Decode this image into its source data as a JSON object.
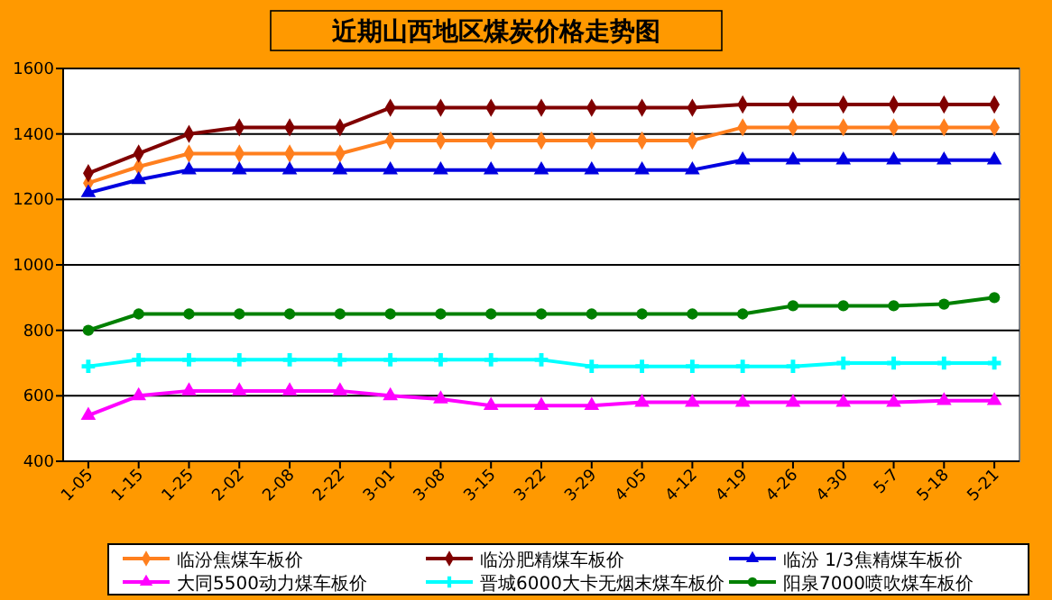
{
  "chart_data": {
    "type": "line",
    "title": "近期山西地区煤炭价格走势图",
    "categories": [
      "1-05",
      "1-15",
      "1-25",
      "2-02",
      "2-08",
      "2-22",
      "3-01",
      "3-08",
      "3-15",
      "3-22",
      "3-29",
      "4-05",
      "4-12",
      "4-19",
      "4-26",
      "4-30",
      "5-7",
      "5-18",
      "5-21"
    ],
    "series": [
      {
        "name": "临汾焦煤车板价",
        "color": "#ff7f1e",
        "marker": "diamond",
        "values": [
          1250,
          1300,
          1340,
          1340,
          1340,
          1340,
          1380,
          1380,
          1380,
          1380,
          1380,
          1380,
          1380,
          1420,
          1420,
          1420,
          1420,
          1420,
          1420
        ]
      },
      {
        "name": "临汾肥精煤车板价",
        "color": "#800000",
        "marker": "diamond",
        "values": [
          1280,
          1340,
          1400,
          1420,
          1420,
          1420,
          1480,
          1480,
          1480,
          1480,
          1480,
          1480,
          1480,
          1490,
          1490,
          1490,
          1490,
          1490,
          1490
        ]
      },
      {
        "name": "临汾 1/3焦精煤车板价",
        "color": "#0000e0",
        "marker": "triangle",
        "values": [
          1220,
          1260,
          1290,
          1290,
          1290,
          1290,
          1290,
          1290,
          1290,
          1290,
          1290,
          1290,
          1290,
          1320,
          1320,
          1320,
          1320,
          1320,
          1320
        ]
      },
      {
        "name": "大同5500动力煤车板价",
        "color": "#ff00ff",
        "marker": "triangle",
        "values": [
          540,
          600,
          615,
          615,
          615,
          615,
          600,
          590,
          570,
          570,
          570,
          580,
          580,
          580,
          580,
          580,
          580,
          585,
          585
        ]
      },
      {
        "name": "晋城6000大卡无烟末煤车板价",
        "color": "#00ffff",
        "marker": "cross",
        "values": [
          690,
          710,
          710,
          710,
          710,
          710,
          710,
          710,
          710,
          710,
          690,
          690,
          690,
          690,
          690,
          700,
          700,
          700,
          700
        ]
      },
      {
        "name": "阳泉7000喷吹煤车板价",
        "color": "#008000",
        "marker": "circle",
        "values": [
          800,
          850,
          850,
          850,
          850,
          850,
          850,
          850,
          850,
          850,
          850,
          850,
          850,
          850,
          875,
          875,
          875,
          880,
          900
        ]
      }
    ],
    "ylim": [
      400,
      1600
    ],
    "yticks": [
      400,
      600,
      800,
      1000,
      1200,
      1400,
      1600
    ],
    "grid": "y",
    "legend": "bottom",
    "line_style": "solid"
  }
}
